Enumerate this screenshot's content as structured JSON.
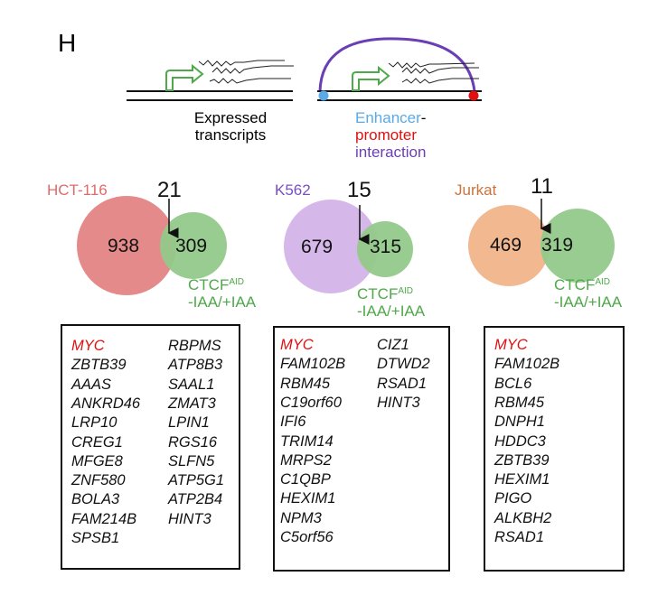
{
  "panel_label": "H",
  "schematic": {
    "left_caption": [
      "Expressed",
      "transcripts"
    ],
    "right_caption": {
      "enhancer": "Enhancer",
      "dash": "-",
      "promoter": "promoter",
      "interaction": "interaction"
    },
    "colors": {
      "arrow": "#4fa84a",
      "arc": "#6a3fb5",
      "enhancer": "#5aaae8",
      "promoter": "#e01010"
    }
  },
  "venns": [
    {
      "cell_line": "HCT-116",
      "label_color": "#e06a6a",
      "unique": "938",
      "overlap": "21",
      "ctcf_unique": "309",
      "fill": "#e48a8a"
    },
    {
      "cell_line": "K562",
      "label_color": "#7a4fc0",
      "unique": "679",
      "overlap": "15",
      "ctcf_unique": "315",
      "fill": "#d6b7ea"
    },
    {
      "cell_line": "Jurkat",
      "label_color": "#c8743a",
      "unique": "469",
      "overlap": "11",
      "ctcf_unique": "319",
      "fill": "#f2b890"
    }
  ],
  "ctcf_label": {
    "main": "CTCF",
    "sup": "AID",
    "condition": "-IAA/+IAA",
    "fill": "#94c98a"
  },
  "gene_lists": [
    {
      "col1": [
        "MYC",
        "ZBTB39",
        "AAAS",
        "ANKRD46",
        "LRP10",
        "CREG1",
        "MFGE8",
        "ZNF580",
        "BOLA3",
        "FAM214B",
        "SPSB1"
      ],
      "col2": [
        "RBPMS",
        "ATP8B3",
        "SAAL1",
        "ZMAT3",
        "LPIN1",
        "RGS16",
        "SLFN5",
        "ATP5G1",
        "ATP2B4",
        "HINT3"
      ]
    },
    {
      "col1": [
        "MYC",
        "FAM102B",
        "RBM45",
        "C19orf60",
        "IFI6",
        "TRIM14",
        "MRPS2",
        "C1QBP",
        "HEXIM1",
        "NPM3",
        "C5orf56"
      ],
      "col2": [
        "CIZ1",
        "DTWD2",
        "RSAD1",
        "HINT3"
      ]
    },
    {
      "col1": [
        "MYC",
        "FAM102B",
        "BCL6",
        "RBM45",
        "DNPH1",
        "HDDC3",
        "ZBTB39",
        "HEXIM1",
        "PIGO",
        "ALKBH2",
        "RSAD1"
      ],
      "col2": []
    }
  ],
  "highlight_color": "#e01010"
}
